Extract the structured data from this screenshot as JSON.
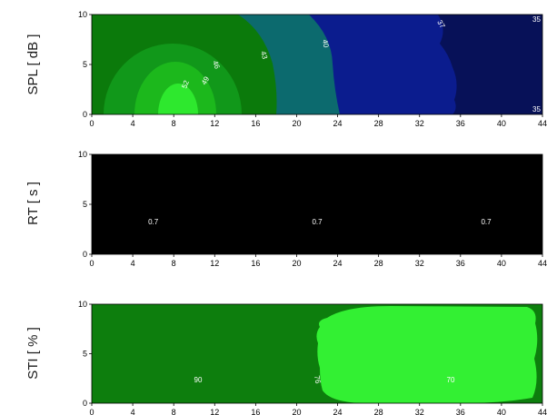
{
  "chart_data": [
    {
      "type": "heatmap",
      "ylabel": "SPL  [ dB ]",
      "xlim": [
        0,
        44
      ],
      "ylim": [
        0,
        10
      ],
      "xticks": [
        "0",
        "4",
        "8",
        "12",
        "16",
        "20",
        "24",
        "28",
        "32",
        "36",
        "40",
        "44"
      ],
      "yticks": [
        "0",
        "5",
        "10"
      ],
      "contour_labels": [
        "52",
        "49",
        "46",
        "43",
        "40",
        "37",
        "35",
        "35"
      ],
      "legend": "none",
      "grid": false,
      "colors": {
        "center_52": "#2ee82e",
        "zone_49": "#1cb81c",
        "zone_46": "#11981a",
        "zone_43": "#0b7a0b",
        "zone_40": "#0c6a6e",
        "zone_37": "#0b1c8e",
        "zone_35": "#071158"
      }
    },
    {
      "type": "heatmap",
      "ylabel": "RT  [ s ]",
      "xlim": [
        0,
        44
      ],
      "ylim": [
        0,
        10
      ],
      "xticks": [
        "0",
        "4",
        "8",
        "12",
        "16",
        "20",
        "24",
        "28",
        "32",
        "36",
        "40",
        "44"
      ],
      "yticks": [
        "0",
        "5",
        "10"
      ],
      "value_labels": [
        {
          "x": 6,
          "y": 3,
          "text": "0.7"
        },
        {
          "x": 22,
          "y": 3,
          "text": "0.7"
        },
        {
          "x": 38.5,
          "y": 3,
          "text": "0.7"
        }
      ],
      "legend": "none",
      "grid": false,
      "colors": {
        "field": "#000000"
      }
    },
    {
      "type": "heatmap",
      "ylabel": "STI  [ % ]",
      "xlim": [
        0,
        44
      ],
      "ylim": [
        0,
        10
      ],
      "xticks": [
        "0",
        "4",
        "8",
        "12",
        "16",
        "20",
        "24",
        "28",
        "32",
        "36",
        "40",
        "44"
      ],
      "yticks": [
        "0",
        "5",
        "10"
      ],
      "contour_labels": [
        "90",
        "76",
        "70"
      ],
      "legend": "none",
      "grid": false,
      "colors": {
        "zone_90": "#0d7e0d",
        "zone_70": "#33f033"
      }
    }
  ]
}
